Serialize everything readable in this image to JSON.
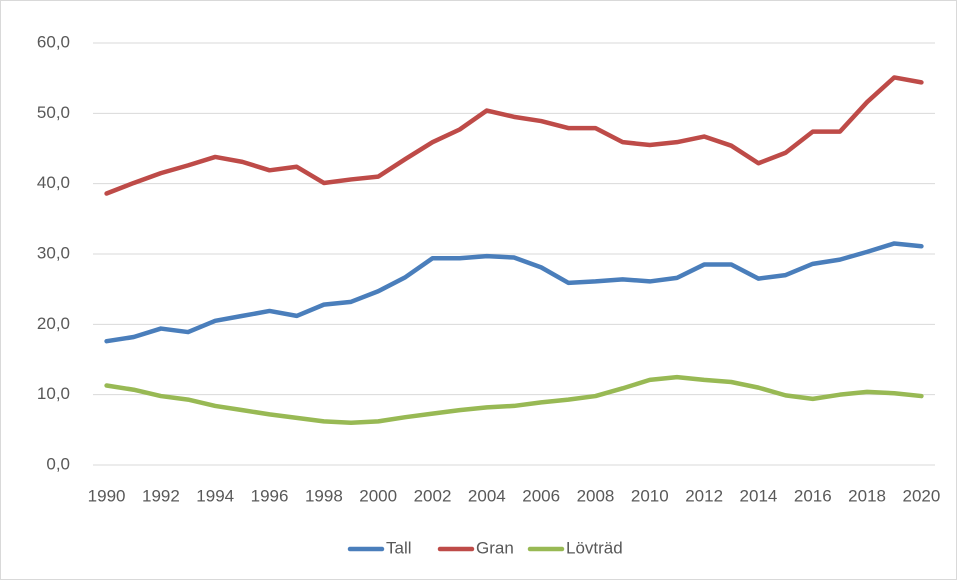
{
  "chart_data": {
    "type": "line",
    "categories": [
      "1990",
      null,
      "1992",
      null,
      "1994",
      null,
      "1996",
      null,
      "1998",
      null,
      "2000",
      null,
      "2002",
      null,
      "2004",
      null,
      "2006",
      null,
      "2008",
      null,
      "2010",
      null,
      "2012",
      null,
      "2014",
      null,
      "2016",
      null,
      "2018",
      null,
      "2020"
    ],
    "series": [
      {
        "name": "Tall",
        "color": "#4a7ebb",
        "values": [
          17.6,
          18.2,
          19.4,
          18.9,
          20.5,
          21.2,
          21.9,
          21.2,
          22.8,
          23.2,
          24.7,
          26.7,
          29.4,
          29.4,
          29.7,
          29.5,
          28.1,
          25.9,
          26.1,
          26.4,
          26.1,
          26.6,
          28.5,
          28.5,
          26.5,
          27.0,
          28.6,
          29.2,
          30.3,
          31.5,
          31.1
        ]
      },
      {
        "name": "Gran",
        "color": "#be4b48",
        "values": [
          38.6,
          40.1,
          41.5,
          42.6,
          43.8,
          43.1,
          41.9,
          42.4,
          40.1,
          40.6,
          41.0,
          43.5,
          45.9,
          47.7,
          50.4,
          49.5,
          48.9,
          47.9,
          47.9,
          45.9,
          45.5,
          45.9,
          46.7,
          45.4,
          42.9,
          44.4,
          47.4,
          47.4,
          51.6,
          55.1,
          54.4
        ]
      },
      {
        "name": "Lövträd",
        "color": "#98b954",
        "values": [
          11.3,
          10.7,
          9.8,
          9.3,
          8.4,
          7.8,
          7.2,
          6.7,
          6.2,
          6.0,
          6.2,
          6.8,
          7.3,
          7.8,
          8.2,
          8.4,
          8.9,
          9.3,
          9.8,
          10.9,
          12.1,
          12.5,
          12.1,
          11.8,
          11.0,
          9.9,
          9.4,
          10.0,
          10.4,
          10.2,
          9.8
        ]
      }
    ],
    "ylim": [
      0,
      60
    ],
    "yticks": [
      {
        "value": 0,
        "label": "0,0"
      },
      {
        "value": 10,
        "label": "10,0"
      },
      {
        "value": 20,
        "label": "20,0"
      },
      {
        "value": 30,
        "label": "30,0"
      },
      {
        "value": 40,
        "label": "40,0"
      },
      {
        "value": 50,
        "label": "50,0"
      },
      {
        "value": 60,
        "label": "60,0"
      }
    ],
    "grid": true,
    "legend": "bottom"
  }
}
